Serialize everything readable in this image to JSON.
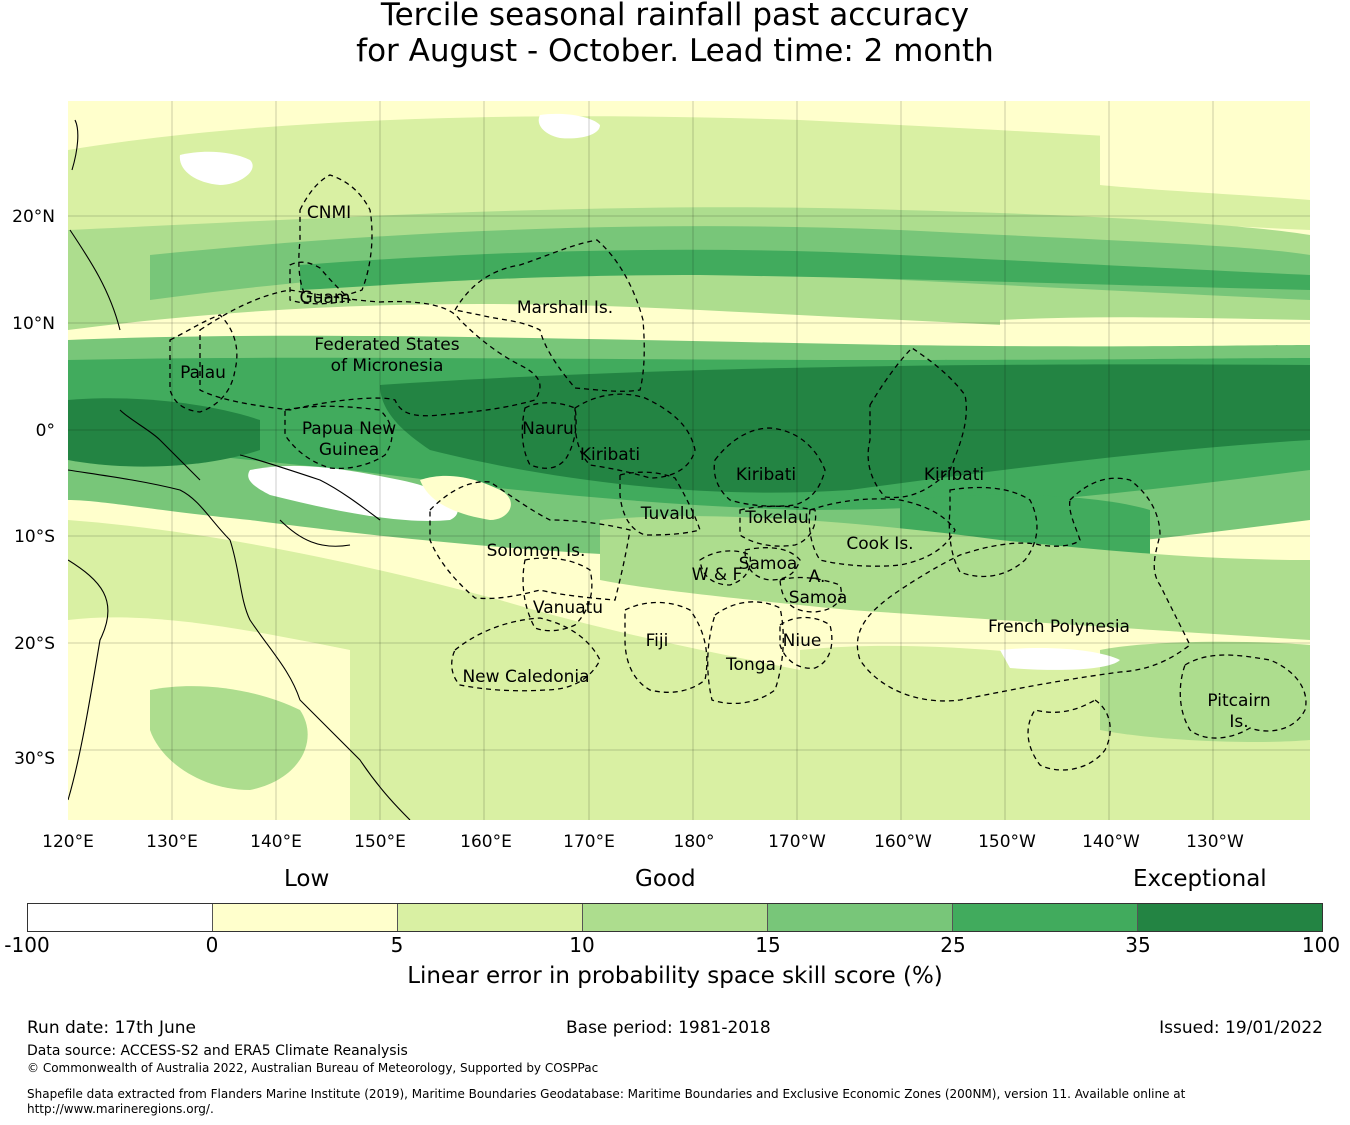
{
  "title": {
    "line1": "Tercile seasonal rainfall past accuracy",
    "line2": "for August - October. Lead time: 2 month"
  },
  "map": {
    "lat_ticks": [
      "20°N",
      "10°N",
      "0°",
      "10°S",
      "20°S",
      "30°S"
    ],
    "lon_ticks": [
      "120°E",
      "130°E",
      "140°E",
      "150°E",
      "160°E",
      "170°E",
      "180°",
      "170°W",
      "160°W",
      "150°W",
      "140°W",
      "130°W"
    ],
    "regions": [
      {
        "name": "CNMI"
      },
      {
        "name": "Guam"
      },
      {
        "name": "Marshall Is."
      },
      {
        "name": "Federated States"
      },
      {
        "name": "of Micronesia"
      },
      {
        "name": "Palau"
      },
      {
        "name": "Papua New"
      },
      {
        "name": "Guinea"
      },
      {
        "name": "Nauru"
      },
      {
        "name": "Kiribati"
      },
      {
        "name": "Kiribati"
      },
      {
        "name": "Kiribati"
      },
      {
        "name": "Tuvalu"
      },
      {
        "name": "Tokelau"
      },
      {
        "name": "Cook Is."
      },
      {
        "name": "Solomon Is."
      },
      {
        "name": "Samoa"
      },
      {
        "name": "W & F"
      },
      {
        "name": "A."
      },
      {
        "name": "Samoa"
      },
      {
        "name": "Vanuatu"
      },
      {
        "name": "Fiji"
      },
      {
        "name": "Niue"
      },
      {
        "name": "Tonga"
      },
      {
        "name": "French Polynesia"
      },
      {
        "name": "New Caledonia"
      },
      {
        "name": "Pitcairn"
      },
      {
        "name": "Is."
      }
    ]
  },
  "legend": {
    "low": "Low",
    "good": "Good",
    "exceptional": "Exceptional",
    "ticks": [
      "-100",
      "0",
      "5",
      "10",
      "15",
      "25",
      "35",
      "100"
    ],
    "colors": [
      "#ffffff",
      "#ffffcc",
      "#d9f0a3",
      "#addd8e",
      "#78c679",
      "#41ab5d",
      "#238443"
    ],
    "label": "Linear error in probability space skill score (%)"
  },
  "footer": {
    "run_date": "Run date: 17th June",
    "base_period": "Base period: 1981-2018",
    "issued": "Issued: 19/01/2022",
    "data_source": "Data source: ACCESS-S2 and ERA5 Climate Reanalysis",
    "copyright": "© Commonwealth of Australia 2022, Australian Bureau of Meteorology, Supported by COSPPac",
    "shapefile_1": "Shapefile data extracted from Flanders Marine Institute (2019), Maritime Boundaries Geodatabase: Maritime Boundaries and Exclusive Economic Zones (200NM), version 11. Available online at",
    "shapefile_2": "http://www.marineregions.org/."
  }
}
